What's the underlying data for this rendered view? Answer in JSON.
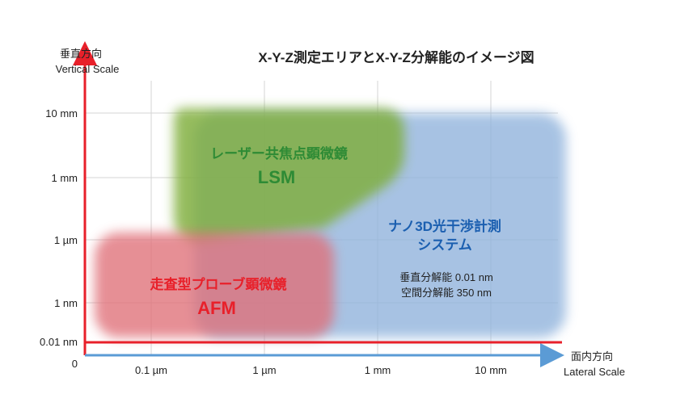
{
  "title": "X-Y-Z測定エリアとX-Y-Z分解能のイメージ図",
  "y_axis": {
    "label_ja": "垂直方向",
    "label_en": "Vertical Scale"
  },
  "x_axis": {
    "label_ja": "面内方向",
    "label_en": "Lateral Scale"
  },
  "origin_label": "0",
  "y_ticks": [
    "10 mm",
    "1 mm",
    "1 µm",
    "1 nm",
    "0.01 nm"
  ],
  "x_ticks": [
    "0.1 µm",
    "1 µm",
    "1 mm",
    "10 mm"
  ],
  "regions": {
    "lsm": {
      "name_ja": "レーザー共焦点顕微鏡",
      "abbr": "LSM",
      "color": "#7fae3a",
      "label_color": "#2e8b35"
    },
    "afm": {
      "name_ja": "走査型プローブ顕微鏡",
      "abbr": "AFM",
      "color": "#e07078",
      "label_color": "#e8202a"
    },
    "nano3d": {
      "name_line1": "ナノ3D光干渉計測",
      "name_line2": "システム",
      "spec_vertical": "垂直分解能 0.01 nm",
      "spec_lateral": "空間分解能 350 nm",
      "color": "#8fb2dc",
      "label_color": "#1b5fb0"
    }
  },
  "colors": {
    "y_axis": "#e8202a",
    "x_axis": "#5b9bd5",
    "grid": "#cfcfcf",
    "limit_line": "#e8202a"
  }
}
